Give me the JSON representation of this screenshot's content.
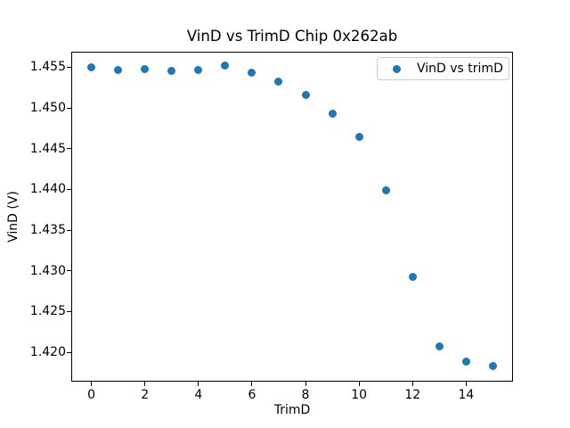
{
  "chart_data": {
    "type": "scatter",
    "title": "VinD vs TrimD Chip 0x262ab",
    "xlabel": "TrimD",
    "ylabel": "VinD (V)",
    "grid": false,
    "background_color": "#ffffff",
    "axis_color": "#000000",
    "text_color": "#000000",
    "xlim": [
      -0.75,
      15.75
    ],
    "ylim": [
      1.4164,
      1.4569
    ],
    "xticks": [
      0,
      2,
      4,
      6,
      8,
      10,
      12,
      14
    ],
    "xtick_labels": [
      "0",
      "2",
      "4",
      "6",
      "8",
      "10",
      "12",
      "14"
    ],
    "yticks": [
      1.42,
      1.425,
      1.43,
      1.435,
      1.44,
      1.445,
      1.45,
      1.455
    ],
    "ytick_labels": [
      "1.420",
      "1.425",
      "1.430",
      "1.435",
      "1.440",
      "1.445",
      "1.450",
      "1.455"
    ],
    "series": [
      {
        "name": "VinD vs trimD",
        "marker": "circle",
        "color": "#1f77b4",
        "x": [
          0,
          1,
          2,
          3,
          4,
          5,
          6,
          7,
          8,
          9,
          10,
          11,
          12,
          13,
          14,
          15
        ],
        "y": [
          1.455,
          1.4547,
          1.4548,
          1.4546,
          1.4547,
          1.4552,
          1.4543,
          1.4532,
          1.4516,
          1.4493,
          1.4465,
          1.4399,
          1.4293,
          1.4207,
          1.4189,
          1.4183
        ]
      }
    ],
    "legend": {
      "position": "upper-right",
      "entries": [
        {
          "label": "VinD vs trimD",
          "marker": "circle",
          "color": "#1f77b4"
        }
      ]
    }
  }
}
